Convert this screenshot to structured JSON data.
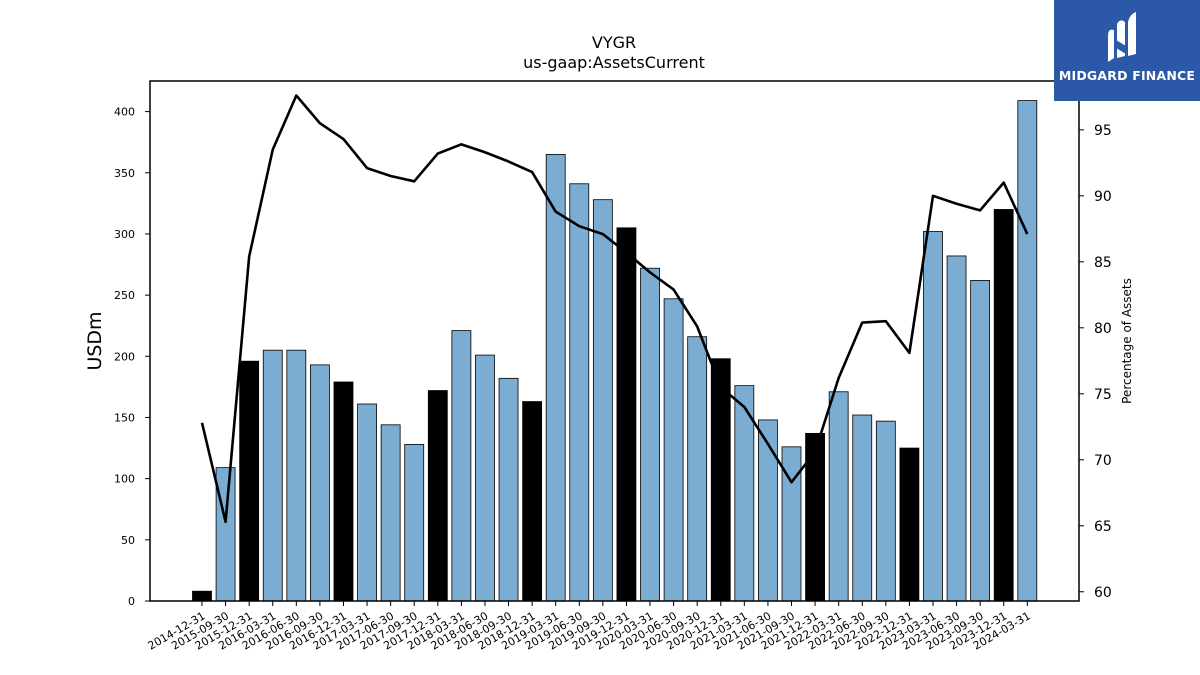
{
  "chart_data": {
    "type": "bar",
    "title": "VYGR",
    "subtitle": "us-gaap:AssetsCurrent",
    "ylabel": "USDm",
    "y2label": "Percentage of Assets",
    "ylim": [
      0,
      425
    ],
    "y2lim": [
      59.3,
      98.7
    ],
    "yticks": [
      0,
      50,
      100,
      150,
      200,
      250,
      300,
      350,
      400
    ],
    "y2ticks": [
      60,
      65,
      70,
      75,
      80,
      85,
      90,
      95
    ],
    "categories": [
      "2014-12-31",
      "2015-09-30",
      "2015-12-31",
      "2016-03-31",
      "2016-06-30",
      "2016-09-30",
      "2016-12-31",
      "2017-03-31",
      "2017-06-30",
      "2017-09-30",
      "2017-12-31",
      "2018-03-31",
      "2018-06-30",
      "2018-09-30",
      "2018-12-31",
      "2019-03-31",
      "2019-06-30",
      "2019-09-30",
      "2019-12-31",
      "2020-03-31",
      "2020-06-30",
      "2020-09-30",
      "2020-12-31",
      "2021-03-31",
      "2021-06-30",
      "2021-09-30",
      "2021-12-31",
      "2022-03-31",
      "2022-06-30",
      "2022-09-30",
      "2022-12-31",
      "2023-03-31",
      "2023-06-30",
      "2023-09-30",
      "2023-12-31",
      "2024-03-31"
    ],
    "series": [
      {
        "name": "",
        "type": "bar",
        "axis": "left",
        "values": [
          8,
          109,
          196,
          205,
          205,
          193,
          179,
          161,
          144,
          128,
          172,
          221,
          201,
          182,
          163,
          365,
          341,
          328,
          305,
          272,
          247,
          216,
          198,
          176,
          148,
          126,
          137,
          171,
          152,
          147,
          125,
          302,
          282,
          262,
          320,
          409
        ],
        "highlight": [
          true,
          false,
          true,
          false,
          false,
          false,
          true,
          false,
          false,
          false,
          true,
          false,
          false,
          false,
          true,
          false,
          false,
          false,
          true,
          false,
          false,
          false,
          true,
          false,
          false,
          false,
          true,
          false,
          false,
          false,
          true,
          false,
          false,
          false,
          true,
          false
        ]
      },
      {
        "name": "",
        "type": "line",
        "axis": "right",
        "values": [
          72.8,
          65.3,
          85.4,
          93.5,
          97.6,
          95.5,
          94.3,
          92.1,
          91.5,
          91.1,
          93.2,
          93.9,
          93.3,
          92.6,
          91.8,
          88.8,
          87.7,
          87.1,
          85.7,
          84.2,
          82.9,
          80.1,
          75.5,
          74.0,
          71.2,
          68.3,
          70.6,
          76.2,
          80.4,
          80.5,
          78.1,
          90.0,
          89.4,
          88.9,
          91.0,
          87.1
        ]
      }
    ],
    "colors": {
      "bar": "#7bacd2",
      "bar_highlight": "#000000",
      "line": "#000000"
    },
    "grid": false,
    "legend": "none"
  },
  "logo": {
    "text": "MIDGARD FINANCE",
    "bg": "#2b59a8"
  }
}
